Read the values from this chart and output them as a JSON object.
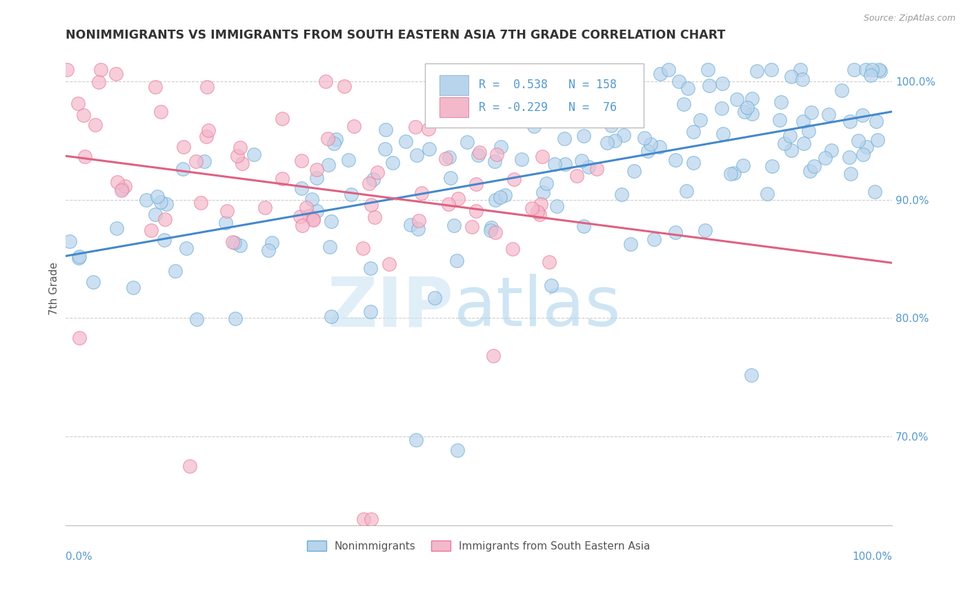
{
  "title": "NONIMMIGRANTS VS IMMIGRANTS FROM SOUTH EASTERN ASIA 7TH GRADE CORRELATION CHART",
  "source": "Source: ZipAtlas.com",
  "ylabel": "7th Grade",
  "xlim": [
    0.0,
    1.0
  ],
  "ylim": [
    0.625,
    1.025
  ],
  "ytick_vals": [
    0.7,
    0.8,
    0.9,
    1.0
  ],
  "ytick_labels": [
    "70.0%",
    "80.0%",
    "90.0%",
    "100.0%"
  ],
  "hgrid_vals": [
    0.7,
    0.8,
    0.9,
    1.0
  ],
  "R_blue": 0.538,
  "N_blue": 158,
  "R_pink": -0.229,
  "N_pink": 76,
  "blue_color": "#b8d4ec",
  "pink_color": "#f4b8cb",
  "blue_edge_color": "#6aaad4",
  "pink_edge_color": "#e8789a",
  "blue_line_color": "#4488cc",
  "pink_line_color": "#e06080",
  "legend_label_blue": "Nonimmigrants",
  "legend_label_pink": "Immigrants from South Eastern Asia",
  "background_color": "#ffffff",
  "grid_color": "#cccccc",
  "title_color": "#333333",
  "axis_label_color": "#555555",
  "tick_color": "#5599cc",
  "source_color": "#999999"
}
